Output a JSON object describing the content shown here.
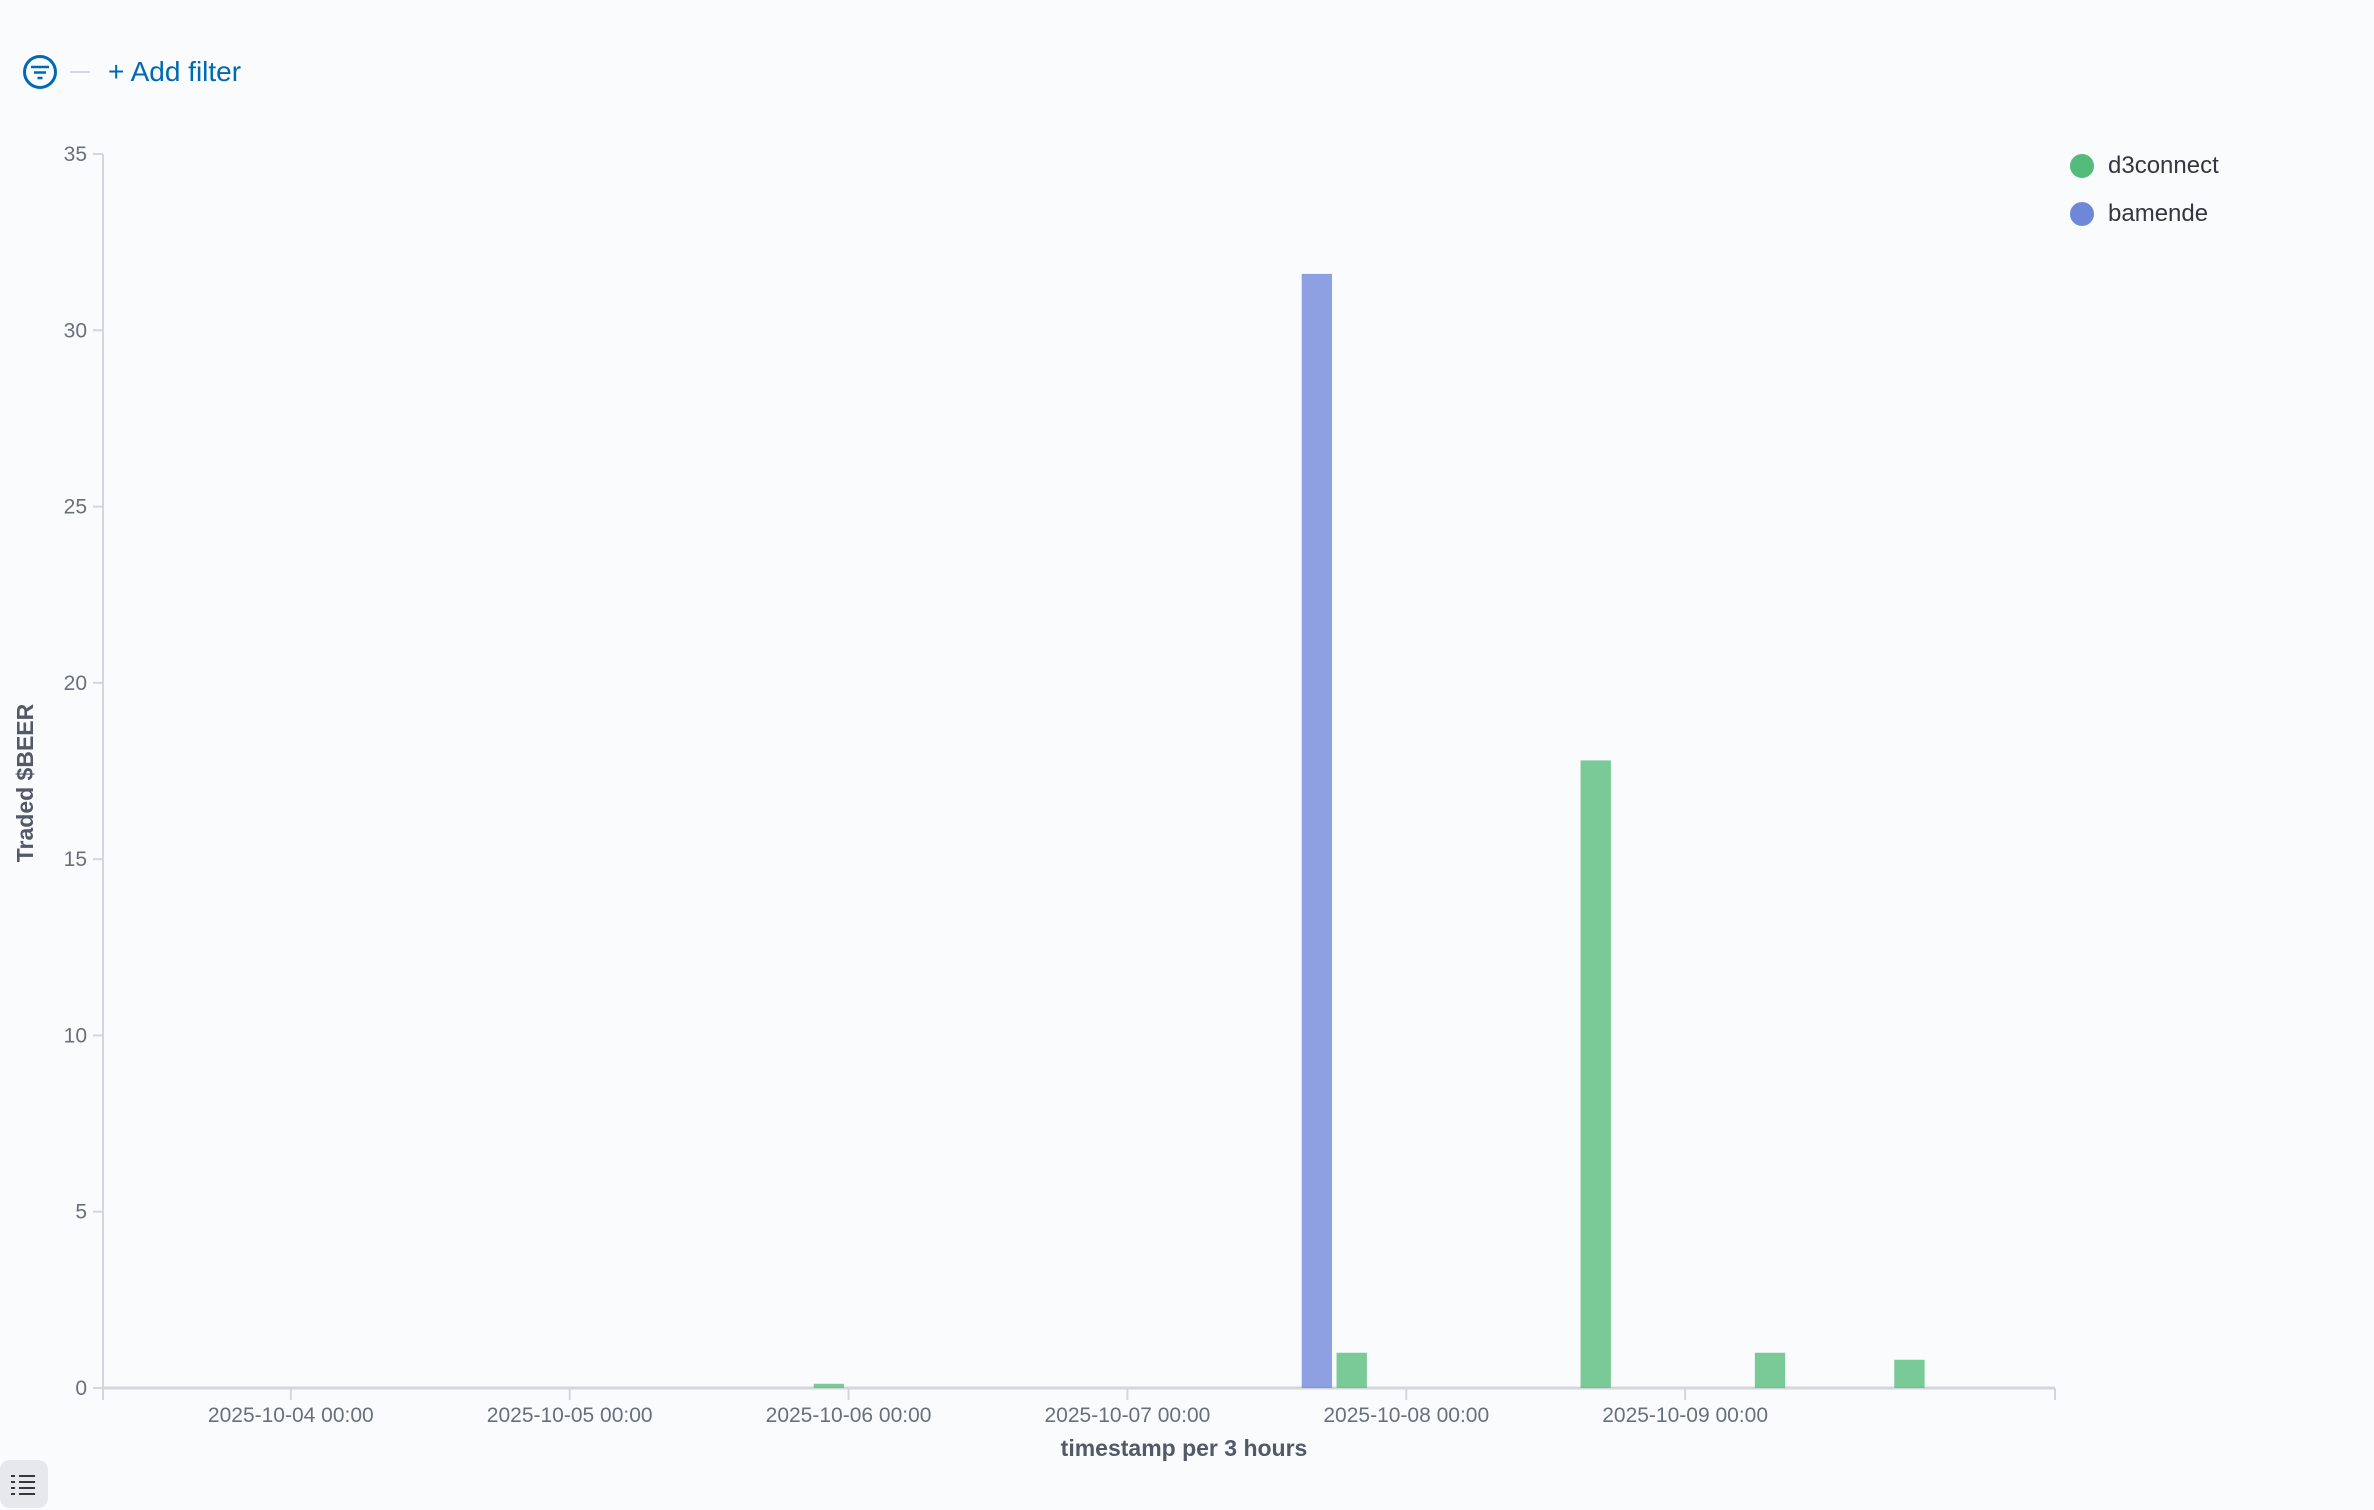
{
  "filter_bar": {
    "add_filter_label": "+ Add filter",
    "icon": "filter-icon"
  },
  "colors": {
    "d3connect": "#54BC7A",
    "bamende": "#6F87D8",
    "axis": "#d3d6dc"
  },
  "chart_data": {
    "type": "bar",
    "title": "",
    "xlabel": "timestamp per 3 hours",
    "ylabel": "Traded $BEER",
    "ylim": [
      0,
      35
    ],
    "yticks": [
      0,
      5,
      10,
      15,
      20,
      25,
      30,
      35
    ],
    "xlim": [
      "2025-10-03T07:50",
      "2025-10-10T07:50"
    ],
    "xticks": [
      "2025-10-04 00:00",
      "2025-10-05 00:00",
      "2025-10-06 00:00",
      "2025-10-07 00:00",
      "2025-10-08 00:00",
      "2025-10-09 00:00"
    ],
    "interval_hours": 3,
    "grid": false,
    "legend_position": "top-right",
    "series": [
      {
        "name": "d3connect",
        "points": [
          {
            "x": "2025-10-05T21:00",
            "y": 0.12
          },
          {
            "x": "2025-10-07T18:00",
            "y": 1.0
          },
          {
            "x": "2025-10-08T15:00",
            "y": 17.8
          },
          {
            "x": "2025-10-09T06:00",
            "y": 1.0
          },
          {
            "x": "2025-10-09T18:00",
            "y": 0.8
          }
        ]
      },
      {
        "name": "bamende",
        "points": [
          {
            "x": "2025-10-07T15:00",
            "y": 31.6
          }
        ]
      }
    ]
  }
}
